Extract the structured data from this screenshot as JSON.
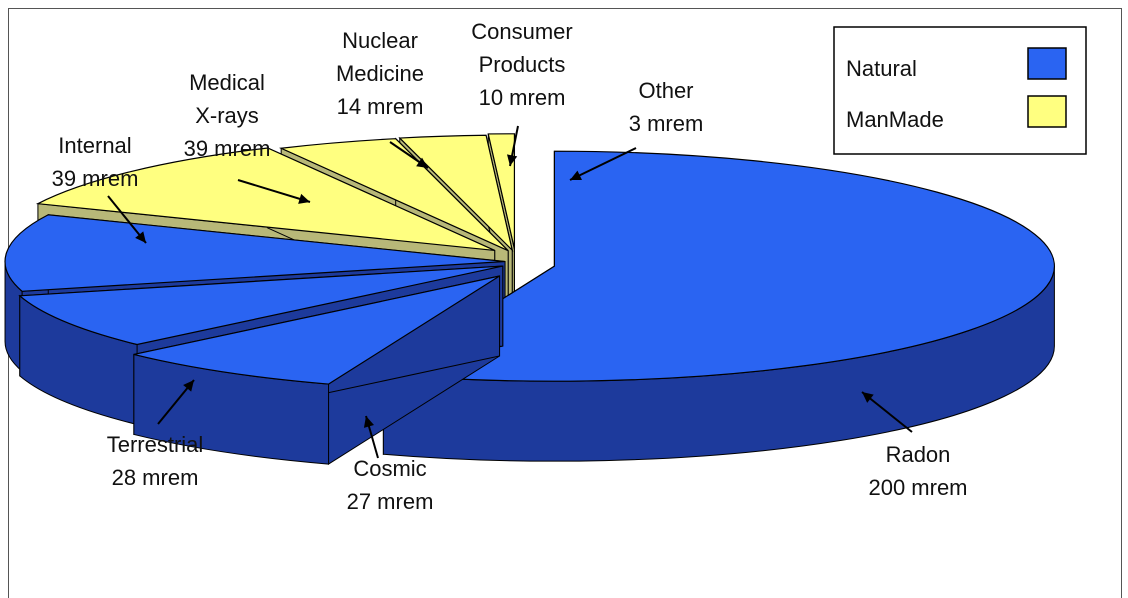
{
  "chart_data": {
    "type": "pie",
    "style": "3d-exploded",
    "legend_position": "top-right",
    "legend": [
      {
        "name": "Natural",
        "color": "#2a64f2"
      },
      {
        "name": "ManMade",
        "color": "#ffff80"
      }
    ],
    "slices": [
      {
        "name": "Radon",
        "value": 200,
        "unit": "mrem",
        "value_text": "200 mrem",
        "group": "Natural"
      },
      {
        "name": "Cosmic",
        "value": 27,
        "unit": "mrem",
        "value_text": "27 mrem",
        "group": "Natural"
      },
      {
        "name": "Terrestrial",
        "value": 28,
        "unit": "mrem",
        "value_text": "28 mrem",
        "group": "Natural"
      },
      {
        "name": "Internal",
        "value": 39,
        "unit": "mrem",
        "value_text": "39 mrem",
        "group": "Natural"
      },
      {
        "name": "Medical X-rays",
        "value": 39,
        "unit": "mrem",
        "value_text": "39 mrem",
        "group": "ManMade"
      },
      {
        "name": "Nuclear Medicine",
        "value": 14,
        "unit": "mrem",
        "value_text": "14 mrem",
        "group": "ManMade"
      },
      {
        "name": "Consumer Products",
        "value": 10,
        "unit": "mrem",
        "value_text": "10 mrem",
        "group": "ManMade"
      },
      {
        "name": "Other",
        "value": 3,
        "unit": "mrem",
        "value_text": "3 mrem",
        "group": "ManMade"
      }
    ],
    "label_lines": [
      [
        "Radon",
        "200 mrem"
      ],
      [
        "Cosmic",
        "27 mrem"
      ],
      [
        "Terrestrial",
        "28 mrem"
      ],
      [
        "Internal",
        "39 mrem"
      ],
      [
        "Medical",
        "X-rays",
        "39 mrem"
      ],
      [
        "Nuclear",
        "Medicine",
        "14 mrem"
      ],
      [
        "Consumer",
        "Products",
        "10 mrem"
      ],
      [
        "Other",
        "3 mrem"
      ]
    ],
    "colors": {
      "natural_top": "#2a64f2",
      "natural_side": "#1d3a9c",
      "manmade_top": "#ffff80",
      "manmade_side": "#b8b878",
      "edge": "#000000"
    }
  }
}
